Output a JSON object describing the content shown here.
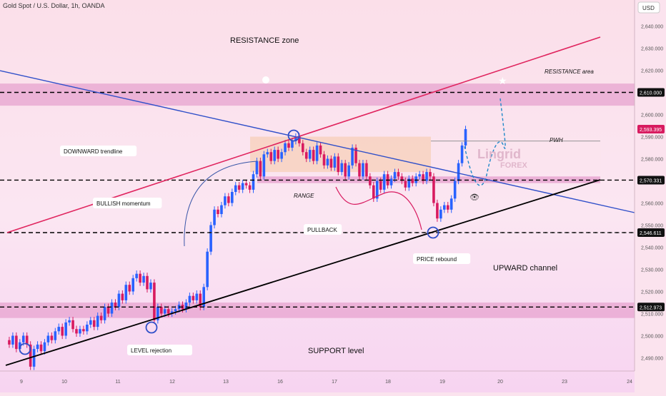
{
  "header": {
    "title": "Gold Spot / U.S. Dollar, 1h, OANDA"
  },
  "currency": "USD",
  "colors": {
    "bull": "#2962ff",
    "bear": "#d81b60",
    "resistance_line": "#e0245e",
    "trendline": "#2f4fc9",
    "channel": "#000000",
    "band": "#e7a3cf",
    "range_box": "#f5c9a6",
    "zone_bg": "#f6c7e3"
  },
  "annotations": {
    "resistance_zone": "RESISTANCE zone",
    "resistance_area": "RESISTANCE area",
    "downward_trendline": "DOWNWARD trendline",
    "bullish_momentum": "BULLISH momentum",
    "range": "RANGE",
    "pullback": "PULLBACK",
    "pwh": "PWH",
    "price_rebound": "PRICE rebound",
    "upward_channel": "UPWARD channel",
    "level_rejection": "LEVEL rejection",
    "support_level": "SUPPORT level"
  },
  "watermark": {
    "line1": "Lingrid",
    "line2": "FOREX"
  },
  "chart_data": {
    "type": "candlestick",
    "title": "Gold Spot / U.S. Dollar, 1h, OANDA",
    "ylim": [
      2484,
      2650
    ],
    "y_ticks": [
      2490,
      2500,
      2510,
      2520,
      2530,
      2540,
      2550,
      2560,
      2570,
      2580,
      2590,
      2600,
      2610,
      2620,
      2630,
      2640
    ],
    "y_tick_labels": [
      "2,490.000",
      "2,500.000",
      "2,510.000",
      "2,520.000",
      "2,530.000",
      "2,540.000",
      "2,550.000",
      "2,560.000",
      "2,570.000",
      "2,580.000",
      "2,590.000",
      "2,600.000",
      "2,610.000",
      "2,620.000",
      "2,630.000",
      "2,640.000"
    ],
    "x_ticks": [
      "9",
      "10",
      "11",
      "12",
      "13",
      "16",
      "17",
      "18",
      "19",
      "20",
      "23",
      "24"
    ],
    "price_levels": [
      {
        "label": "2,610.000",
        "value": 2610.0
      },
      {
        "label": "2,593.395",
        "value": 2593.395,
        "current": true
      },
      {
        "label": "2,570.331",
        "value": 2570.331
      },
      {
        "label": "2,546.611",
        "value": 2546.611
      },
      {
        "label": "2,512.973",
        "value": 2512.973
      }
    ],
    "path_close": [
      [
        0,
        2498
      ],
      [
        5,
        2496
      ],
      [
        10,
        2500
      ],
      [
        15,
        2494
      ],
      [
        20,
        2497
      ],
      [
        25,
        2500
      ],
      [
        30,
        2496
      ],
      [
        35,
        2486
      ],
      [
        40,
        2494
      ],
      [
        45,
        2496
      ],
      [
        50,
        2493
      ],
      [
        55,
        2497
      ],
      [
        60,
        2500
      ],
      [
        65,
        2498
      ],
      [
        70,
        2502
      ],
      [
        75,
        2504
      ],
      [
        80,
        2500
      ],
      [
        85,
        2506
      ],
      [
        90,
        2507
      ],
      [
        95,
        2503
      ],
      [
        100,
        2501
      ],
      [
        105,
        2503
      ],
      [
        110,
        2502
      ],
      [
        115,
        2505
      ],
      [
        120,
        2507
      ],
      [
        125,
        2504
      ],
      [
        130,
        2509
      ],
      [
        135,
        2507
      ],
      [
        140,
        2513
      ],
      [
        145,
        2510
      ],
      [
        150,
        2515
      ],
      [
        155,
        2513
      ],
      [
        160,
        2519
      ],
      [
        165,
        2516
      ],
      [
        170,
        2523
      ],
      [
        175,
        2520
      ],
      [
        180,
        2526
      ],
      [
        185,
        2528
      ],
      [
        190,
        2524
      ],
      [
        195,
        2527
      ],
      [
        200,
        2521
      ],
      [
        205,
        2524
      ],
      [
        210,
        2507
      ],
      [
        215,
        2513
      ],
      [
        220,
        2510
      ],
      [
        225,
        2512
      ],
      [
        230,
        2510
      ],
      [
        235,
        2511
      ],
      [
        240,
        2512
      ],
      [
        245,
        2514
      ],
      [
        250,
        2512
      ],
      [
        255,
        2515
      ],
      [
        260,
        2518
      ],
      [
        265,
        2516
      ],
      [
        270,
        2519
      ],
      [
        275,
        2513
      ],
      [
        280,
        2522
      ],
      [
        285,
        2538
      ],
      [
        290,
        2550
      ],
      [
        295,
        2557
      ],
      [
        300,
        2555
      ],
      [
        305,
        2559
      ],
      [
        310,
        2563
      ],
      [
        315,
        2560
      ],
      [
        320,
        2565
      ],
      [
        325,
        2568
      ],
      [
        330,
        2566
      ],
      [
        335,
        2569
      ],
      [
        340,
        2568
      ],
      [
        345,
        2566
      ],
      [
        350,
        2573
      ],
      [
        355,
        2579
      ],
      [
        360,
        2572
      ],
      [
        365,
        2582
      ],
      [
        370,
        2583
      ],
      [
        375,
        2579
      ],
      [
        380,
        2584
      ],
      [
        385,
        2580
      ],
      [
        390,
        2583
      ],
      [
        395,
        2587
      ],
      [
        400,
        2585
      ],
      [
        405,
        2588
      ],
      [
        410,
        2590
      ],
      [
        415,
        2587
      ],
      [
        420,
        2583
      ],
      [
        425,
        2580
      ],
      [
        430,
        2584
      ],
      [
        435,
        2579
      ],
      [
        440,
        2586
      ],
      [
        445,
        2582
      ],
      [
        450,
        2577
      ],
      [
        455,
        2580
      ],
      [
        460,
        2576
      ],
      [
        465,
        2581
      ],
      [
        470,
        2574
      ],
      [
        475,
        2578
      ],
      [
        480,
        2572
      ],
      [
        485,
        2577
      ],
      [
        490,
        2585
      ],
      [
        495,
        2578
      ],
      [
        500,
        2572
      ],
      [
        505,
        2578
      ],
      [
        510,
        2572
      ],
      [
        515,
        2568
      ],
      [
        520,
        2562
      ],
      [
        525,
        2570
      ],
      [
        530,
        2566
      ],
      [
        535,
        2573
      ],
      [
        540,
        2568
      ],
      [
        545,
        2571
      ],
      [
        550,
        2574
      ],
      [
        555,
        2572
      ],
      [
        560,
        2570
      ],
      [
        565,
        2567
      ],
      [
        570,
        2571
      ],
      [
        575,
        2569
      ],
      [
        580,
        2572
      ],
      [
        585,
        2573
      ],
      [
        590,
        2570
      ],
      [
        595,
        2574
      ],
      [
        600,
        2572
      ],
      [
        605,
        2560
      ],
      [
        610,
        2553
      ],
      [
        615,
        2557
      ],
      [
        620,
        2559
      ],
      [
        625,
        2557
      ],
      [
        630,
        2562
      ],
      [
        635,
        2570
      ],
      [
        640,
        2578
      ],
      [
        645,
        2586
      ],
      [
        650,
        2593.4
      ]
    ],
    "projection_label": "",
    "grid": false,
    "legend": "none"
  }
}
